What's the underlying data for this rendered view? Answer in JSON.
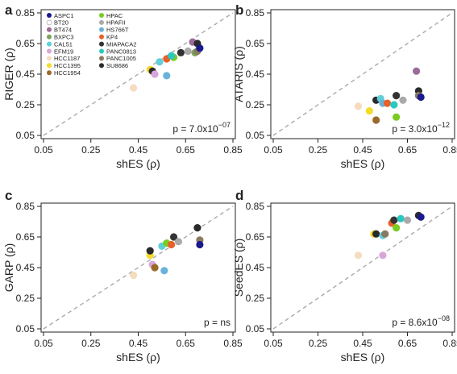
{
  "legend": {
    "left": [
      "ASPC1",
      "BT20",
      "BT474",
      "BXPC3",
      "CAL51",
      "EFM19",
      "HCC1187",
      "HCC1395",
      "HCC1954"
    ],
    "right": [
      "HPAC",
      "HPAFII",
      "HS766T",
      "KP4",
      "MIAPACA2",
      "PANC0813",
      "PANC1005",
      "SU8686"
    ]
  },
  "colors": {
    "ASPC1": "#1a1a8c",
    "BT20": "#ffffff",
    "BT474": "#9b6b9b",
    "BXPC3": "#7aa35a",
    "CAL51": "#5fd0d8",
    "EFM19": "#d9a6d9",
    "HCC1187": "#f5dcc0",
    "HCC1395": "#f4dc2a",
    "HCC1954": "#9a6a2a",
    "HPAC": "#7acc22",
    "HPAFII": "#aaaaaa",
    "HS766T": "#6ab2d8",
    "KP4": "#e8602a",
    "MIAPACA2": "#333333",
    "PANC0813": "#2ac8c0",
    "PANC1005": "#8a7a60",
    "SU8686": "#2a2a2a"
  },
  "chart_data": [
    {
      "type": "scatter",
      "panel": "a",
      "xlabel": "shES (ρ)",
      "ylabel": "RIGER (ρ)",
      "xlim": [
        0.05,
        0.85
      ],
      "ylim": [
        0.05,
        0.85
      ],
      "ticks": [
        "0.05",
        "0.25",
        "0.45",
        "0.65",
        "0.85"
      ],
      "reference_line": "y = x, dashed",
      "annotation": {
        "prefix": "p = 7.0x10",
        "exp": "−07"
      },
      "legend_position": "top-left",
      "points": [
        {
          "x": 0.43,
          "y": 0.36,
          "name": "HCC1187"
        },
        {
          "x": 0.5,
          "y": 0.48,
          "name": "HCC1395"
        },
        {
          "x": 0.51,
          "y": 0.47,
          "name": "SU8686"
        },
        {
          "x": 0.52,
          "y": 0.45,
          "name": "EFM19"
        },
        {
          "x": 0.54,
          "y": 0.53,
          "name": "CAL51"
        },
        {
          "x": 0.57,
          "y": 0.44,
          "name": "HS766T"
        },
        {
          "x": 0.57,
          "y": 0.55,
          "name": "KP4"
        },
        {
          "x": 0.6,
          "y": 0.56,
          "name": "HPAC"
        },
        {
          "x": 0.59,
          "y": 0.57,
          "name": "PANC0813"
        },
        {
          "x": 0.63,
          "y": 0.59,
          "name": "MIAPACA2"
        },
        {
          "x": 0.66,
          "y": 0.6,
          "name": "HPAFII"
        },
        {
          "x": 0.68,
          "y": 0.66,
          "name": "BT474"
        },
        {
          "x": 0.69,
          "y": 0.59,
          "name": "BXPC3"
        },
        {
          "x": 0.7,
          "y": 0.6,
          "name": "PANC1005"
        },
        {
          "x": 0.7,
          "y": 0.65,
          "name": "SU8686"
        },
        {
          "x": 0.71,
          "y": 0.62,
          "name": "ASPC1"
        }
      ]
    },
    {
      "type": "scatter",
      "panel": "b",
      "xlabel": "shES (ρ)",
      "ylabel": "ATARIS (ρ)",
      "xlim": [
        0.05,
        0.85
      ],
      "ylim": [
        0.05,
        0.85
      ],
      "ticks": [
        "0.05",
        "0.25",
        "0.45",
        "0.65",
        "0.85"
      ],
      "reference_line": "y = x, dashed",
      "annotation": {
        "prefix": "p = 3.0x10",
        "exp": "−12"
      },
      "points": [
        {
          "x": 0.43,
          "y": 0.24,
          "name": "HCC1187"
        },
        {
          "x": 0.48,
          "y": 0.21,
          "name": "HCC1395"
        },
        {
          "x": 0.51,
          "y": 0.28,
          "name": "SU8686"
        },
        {
          "x": 0.51,
          "y": 0.15,
          "name": "HCC1954"
        },
        {
          "x": 0.53,
          "y": 0.29,
          "name": "CAL51"
        },
        {
          "x": 0.54,
          "y": 0.26,
          "name": "HS766T"
        },
        {
          "x": 0.56,
          "y": 0.26,
          "name": "KP4"
        },
        {
          "x": 0.59,
          "y": 0.25,
          "name": "PANC0813"
        },
        {
          "x": 0.6,
          "y": 0.31,
          "name": "MIAPACA2"
        },
        {
          "x": 0.6,
          "y": 0.17,
          "name": "HPAC"
        },
        {
          "x": 0.63,
          "y": 0.28,
          "name": "HPAFII"
        },
        {
          "x": 0.69,
          "y": 0.47,
          "name": "BT474"
        },
        {
          "x": 0.7,
          "y": 0.34,
          "name": "SU8686"
        },
        {
          "x": 0.7,
          "y": 0.31,
          "name": "PANC1005"
        },
        {
          "x": 0.71,
          "y": 0.3,
          "name": "ASPC1"
        }
      ]
    },
    {
      "type": "scatter",
      "panel": "c",
      "xlabel": "shES (ρ)",
      "ylabel": "GARP (ρ)",
      "xlim": [
        0.05,
        0.85
      ],
      "ylim": [
        0.05,
        0.85
      ],
      "ticks": [
        "0.05",
        "0.25",
        "0.45",
        "0.65",
        "0.85"
      ],
      "reference_line": "y = x, dashed",
      "annotation": {
        "prefix": "p = ns",
        "exp": ""
      },
      "points": [
        {
          "x": 0.43,
          "y": 0.4,
          "name": "HCC1187"
        },
        {
          "x": 0.5,
          "y": 0.53,
          "name": "HCC1395"
        },
        {
          "x": 0.5,
          "y": 0.56,
          "name": "SU8686"
        },
        {
          "x": 0.51,
          "y": 0.47,
          "name": "EFM19"
        },
        {
          "x": 0.52,
          "y": 0.45,
          "name": "HCC1954"
        },
        {
          "x": 0.55,
          "y": 0.59,
          "name": "CAL51"
        },
        {
          "x": 0.56,
          "y": 0.43,
          "name": "HS766T"
        },
        {
          "x": 0.57,
          "y": 0.61,
          "name": "HPAC"
        },
        {
          "x": 0.59,
          "y": 0.6,
          "name": "KP4"
        },
        {
          "x": 0.6,
          "y": 0.65,
          "name": "MIAPACA2"
        },
        {
          "x": 0.62,
          "y": 0.62,
          "name": "HPAFII"
        },
        {
          "x": 0.7,
          "y": 0.71,
          "name": "SU8686"
        },
        {
          "x": 0.71,
          "y": 0.63,
          "name": "PANC1005"
        },
        {
          "x": 0.71,
          "y": 0.6,
          "name": "ASPC1"
        }
      ]
    },
    {
      "type": "scatter",
      "panel": "d",
      "xlabel": "shES (ρ)",
      "ylabel": "SeedES (ρ)",
      "xlim": [
        0.05,
        0.85
      ],
      "ylim": [
        0.05,
        0.85
      ],
      "ticks": [
        "0.05",
        "0.25",
        "0.45",
        "0.65",
        "0.85"
      ],
      "reference_line": "y = x, dashed",
      "annotation": {
        "prefix": "p = 8.6x10",
        "exp": "−08"
      },
      "points": [
        {
          "x": 0.43,
          "y": 0.53,
          "name": "HCC1187"
        },
        {
          "x": 0.5,
          "y": 0.67,
          "name": "HCC1395"
        },
        {
          "x": 0.51,
          "y": 0.67,
          "name": "SU8686"
        },
        {
          "x": 0.54,
          "y": 0.66,
          "name": "CAL51"
        },
        {
          "x": 0.54,
          "y": 0.53,
          "name": "EFM19"
        },
        {
          "x": 0.55,
          "y": 0.67,
          "name": "PANC1005"
        },
        {
          "x": 0.58,
          "y": 0.74,
          "name": "KP4"
        },
        {
          "x": 0.59,
          "y": 0.76,
          "name": "MIAPACA2"
        },
        {
          "x": 0.6,
          "y": 0.71,
          "name": "HPAC"
        },
        {
          "x": 0.62,
          "y": 0.77,
          "name": "PANC0813"
        },
        {
          "x": 0.65,
          "y": 0.76,
          "name": "HPAFII"
        },
        {
          "x": 0.7,
          "y": 0.79,
          "name": "SU8686"
        },
        {
          "x": 0.71,
          "y": 0.78,
          "name": "ASPC1"
        }
      ]
    }
  ]
}
